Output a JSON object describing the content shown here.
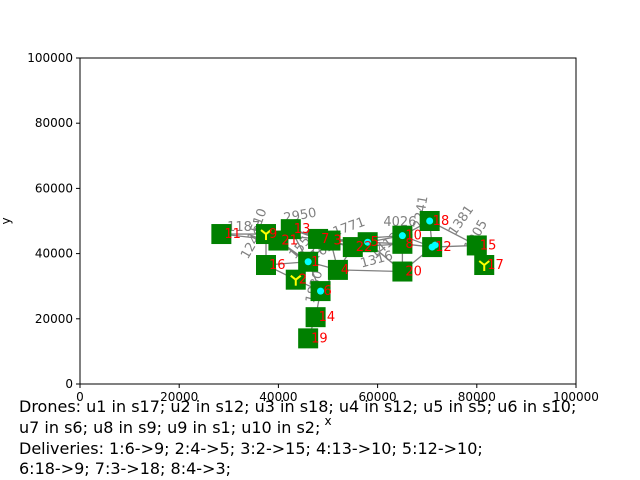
{
  "chart_data": {
    "type": "scatter",
    "title": "",
    "xlabel": "x",
    "ylabel": "y",
    "xlim": [
      0,
      100000
    ],
    "ylim": [
      0,
      100000
    ],
    "xticks": [
      "0",
      "20000",
      "40000",
      "60000",
      "80000",
      "100000"
    ],
    "yticks": [
      "0",
      "20000",
      "40000",
      "60000",
      "80000",
      "100000"
    ],
    "grid": false,
    "stations": [
      {
        "id": "1",
        "x": 46000,
        "y": 37500
      },
      {
        "id": "2",
        "x": 43500,
        "y": 32000
      },
      {
        "id": "3",
        "x": 50500,
        "y": 44000
      },
      {
        "id": "4",
        "x": 52000,
        "y": 35000
      },
      {
        "id": "5",
        "x": 58000,
        "y": 43500
      },
      {
        "id": "6",
        "x": 48500,
        "y": 28500
      },
      {
        "id": "7",
        "x": 48000,
        "y": 44500
      },
      {
        "id": "8",
        "x": 65000,
        "y": 43000
      },
      {
        "id": "9",
        "x": 37500,
        "y": 46000
      },
      {
        "id": "10",
        "x": 65000,
        "y": 45500
      },
      {
        "id": "11",
        "x": 28500,
        "y": 46000
      },
      {
        "id": "12",
        "x": 71000,
        "y": 42000
      },
      {
        "id": "13",
        "x": 42500,
        "y": 47500
      },
      {
        "id": "14",
        "x": 47500,
        "y": 20500
      },
      {
        "id": "15",
        "x": 80000,
        "y": 42500
      },
      {
        "id": "16",
        "x": 37500,
        "y": 36500
      },
      {
        "id": "17",
        "x": 81500,
        "y": 36500
      },
      {
        "id": "18",
        "x": 70500,
        "y": 50000
      },
      {
        "id": "19",
        "x": 46000,
        "y": 14000
      },
      {
        "id": "20",
        "x": 65000,
        "y": 34500
      },
      {
        "id": "21",
        "x": 40000,
        "y": 44000
      },
      {
        "id": "22",
        "x": 55000,
        "y": 42000
      }
    ],
    "edges": [
      [
        "11",
        "9"
      ],
      [
        "9",
        "13"
      ],
      [
        "9",
        "21"
      ],
      [
        "21",
        "13"
      ],
      [
        "21",
        "1"
      ],
      [
        "13",
        "7"
      ],
      [
        "13",
        "3"
      ],
      [
        "7",
        "3"
      ],
      [
        "3",
        "5"
      ],
      [
        "5",
        "10"
      ],
      [
        "5",
        "8"
      ],
      [
        "10",
        "18"
      ],
      [
        "8",
        "12"
      ],
      [
        "12",
        "15"
      ],
      [
        "15",
        "17"
      ],
      [
        "10",
        "12"
      ],
      [
        "18",
        "12"
      ],
      [
        "1",
        "2"
      ],
      [
        "1",
        "4"
      ],
      [
        "2",
        "6"
      ],
      [
        "6",
        "4"
      ],
      [
        "6",
        "14"
      ],
      [
        "14",
        "19"
      ],
      [
        "16",
        "1"
      ],
      [
        "16",
        "9"
      ],
      [
        "4",
        "22"
      ],
      [
        "22",
        "5"
      ],
      [
        "22",
        "3"
      ],
      [
        "8",
        "20"
      ],
      [
        "20",
        "4"
      ],
      [
        "20",
        "5"
      ],
      [
        "1",
        "3"
      ],
      [
        "7",
        "22"
      ],
      [
        "2",
        "16"
      ],
      [
        "9",
        "1"
      ],
      [
        "13",
        "1"
      ],
      [
        "7",
        "1"
      ],
      [
        "3",
        "4"
      ],
      [
        "5",
        "20"
      ],
      [
        "10",
        "8"
      ],
      [
        "18",
        "15"
      ],
      [
        "12",
        "20"
      ],
      [
        "11",
        "21"
      ],
      [
        "9",
        "7"
      ],
      [
        "6",
        "1"
      ],
      [
        "22",
        "8"
      ],
      [
        "3",
        "10"
      ],
      [
        "7",
        "5"
      ]
    ],
    "edge_labels": [
      {
        "text": "1381",
        "x": 77500,
        "y": 49500,
        "rotate": -55
      },
      {
        "text": "1771",
        "x": 54500,
        "y": 47000,
        "rotate": -20
      },
      {
        "text": "1316",
        "x": 60000,
        "y": 37000,
        "rotate": -15
      },
      {
        "text": "1246",
        "x": 35500,
        "y": 42500,
        "rotate": -60
      },
      {
        "text": "1510",
        "x": 36500,
        "y": 48500,
        "rotate": -70
      },
      {
        "text": "1830",
        "x": 48000,
        "y": 29500,
        "rotate": -75
      },
      {
        "text": "2241",
        "x": 69500,
        "y": 52500,
        "rotate": -80
      },
      {
        "text": "1905",
        "x": 80500,
        "y": 45000,
        "rotate": -60
      },
      {
        "text": "4026",
        "x": 64500,
        "y": 48500,
        "rotate": 0
      },
      {
        "text": "1187",
        "x": 33000,
        "y": 47000,
        "rotate": 0
      },
      {
        "text": "2950",
        "x": 44500,
        "y": 50500,
        "rotate": -10
      },
      {
        "text": "1628",
        "x": 50000,
        "y": 40500,
        "rotate": -30
      },
      {
        "text": "1412",
        "x": 62000,
        "y": 41500,
        "rotate": -40
      },
      {
        "text": "1554",
        "x": 45500,
        "y": 42000,
        "rotate": -50
      }
    ],
    "drones": [
      {
        "id": "u1",
        "station": "17",
        "color": "#ffff00"
      },
      {
        "id": "u2",
        "station": "12",
        "color": "#00ffff"
      },
      {
        "id": "u3",
        "station": "18",
        "color": "#00ffff"
      },
      {
        "id": "u4",
        "station": "12",
        "color": "#00ffff"
      },
      {
        "id": "u5",
        "station": "5",
        "color": "#00ffff"
      },
      {
        "id": "u6",
        "station": "10",
        "color": "#00ffff"
      },
      {
        "id": "u7",
        "station": "6",
        "color": "#00ffff"
      },
      {
        "id": "u8",
        "station": "9",
        "color": "#ffff00"
      },
      {
        "id": "u9",
        "station": "1",
        "color": "#00ffff"
      },
      {
        "id": "u10",
        "station": "2",
        "color": "#ffff00"
      }
    ],
    "colors": {
      "station": "#008000",
      "station_label": "#ff0000",
      "edge": "#808080",
      "drone_cyan": "#00ffff",
      "drone_yellow": "#ffff00",
      "edge_label": "#808080"
    }
  },
  "captions": {
    "line1": "Drones: u1 in s17; u2 in s12; u3 in s18; u4 in s12; u5 in s5; u6 in s10;",
    "line2": "u7 in s6; u8 in s9; u9 in s1; u10 in s2;",
    "line3": "Deliveries: 1:6->9; 2:4->5; 3:2->15; 4:13->10; 5:12->10;",
    "line4": "6:18->9; 7:3->18; 8:4->3;"
  }
}
